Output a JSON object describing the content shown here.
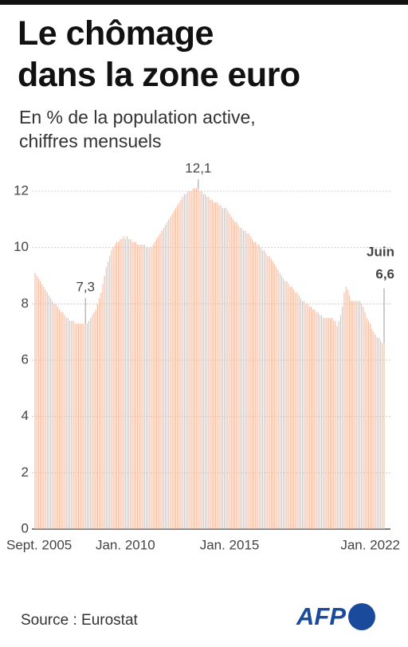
{
  "chart_data": {
    "type": "bar",
    "title": [
      "Le chômage",
      "dans la zone euro"
    ],
    "subtitle": [
      "En % de la population active,",
      "chiffres mensuels"
    ],
    "source": "Source : Eurostat",
    "logo": "AFP",
    "annotation": "Juin",
    "color": "#f5b9a0",
    "grid": true,
    "ylim": [
      0,
      12.3
    ],
    "yticks": [
      0,
      2,
      4,
      6,
      8,
      10,
      12
    ],
    "categories": [
      "Sept. 2005",
      null,
      null,
      null,
      null,
      null,
      null,
      null,
      null,
      null,
      null,
      null,
      null,
      null,
      null,
      null,
      null,
      null,
      null,
      null,
      null,
      null,
      null,
      null,
      null,
      null,
      null,
      null,
      null,
      null,
      null,
      null,
      null,
      null,
      null,
      null,
      null,
      null,
      null,
      null,
      null,
      null,
      null,
      null,
      null,
      null,
      null,
      null,
      null,
      null,
      null,
      null,
      "Jan. 2010",
      null,
      null,
      null,
      null,
      null,
      null,
      null,
      null,
      null,
      null,
      null,
      null,
      null,
      null,
      null,
      null,
      null,
      null,
      null,
      null,
      null,
      null,
      null,
      null,
      null,
      null,
      null,
      null,
      null,
      null,
      null,
      null,
      null,
      null,
      null,
      null,
      null,
      null,
      null,
      null,
      null,
      null,
      null,
      null,
      null,
      null,
      null,
      null,
      null,
      null,
      null,
      null,
      null,
      null,
      null,
      null,
      null,
      null,
      null,
      "Jan. 2015",
      null,
      null,
      null,
      null,
      null,
      null,
      null,
      null,
      null,
      null,
      null,
      null,
      null,
      null,
      null,
      null,
      null,
      null,
      null,
      null,
      null,
      null,
      null,
      null,
      null,
      null,
      null,
      null,
      null,
      null,
      null,
      null,
      null,
      null,
      null,
      null,
      null,
      null,
      null,
      null,
      null,
      null,
      null,
      null,
      null,
      null,
      null,
      null,
      null,
      null,
      null,
      null,
      null,
      null,
      null,
      null,
      null,
      null,
      null,
      null,
      null,
      null,
      null,
      null,
      null,
      null,
      null,
      null,
      null,
      null,
      null,
      null,
      null,
      null,
      null,
      null,
      null,
      null,
      null,
      null,
      null,
      null,
      null,
      "Jan. 2022",
      null,
      null,
      null,
      null,
      null
    ],
    "values": [
      9.1,
      9.0,
      8.9,
      8.8,
      8.7,
      8.6,
      8.5,
      8.4,
      8.3,
      8.2,
      8.1,
      8.0,
      8.0,
      7.9,
      7.8,
      7.7,
      7.7,
      7.6,
      7.5,
      7.5,
      7.4,
      7.4,
      7.4,
      7.3,
      7.3,
      7.3,
      7.3,
      7.3,
      7.3,
      7.3,
      7.3,
      7.4,
      7.5,
      7.6,
      7.7,
      7.8,
      8.0,
      8.2,
      8.4,
      8.7,
      9.0,
      9.3,
      9.5,
      9.7,
      9.9,
      10.0,
      10.1,
      10.2,
      10.2,
      10.3,
      10.3,
      10.4,
      10.3,
      10.4,
      10.3,
      10.3,
      10.2,
      10.2,
      10.2,
      10.1,
      10.1,
      10.1,
      10.1,
      10.1,
      10.0,
      10.0,
      10.0,
      10.0,
      10.1,
      10.2,
      10.3,
      10.4,
      10.5,
      10.6,
      10.7,
      10.8,
      10.9,
      11.0,
      11.1,
      11.2,
      11.3,
      11.4,
      11.5,
      11.6,
      11.7,
      11.8,
      11.9,
      11.9,
      12.0,
      12.0,
      12.0,
      12.1,
      12.1,
      12.1,
      12.1,
      12.0,
      12.0,
      11.9,
      11.9,
      11.8,
      11.8,
      11.7,
      11.7,
      11.6,
      11.6,
      11.6,
      11.5,
      11.5,
      11.4,
      11.4,
      11.4,
      11.3,
      11.2,
      11.1,
      11.0,
      10.9,
      10.9,
      10.8,
      10.7,
      10.7,
      10.6,
      10.6,
      10.5,
      10.5,
      10.4,
      10.3,
      10.2,
      10.2,
      10.1,
      10.1,
      10.0,
      9.9,
      9.9,
      9.8,
      9.7,
      9.7,
      9.6,
      9.5,
      9.4,
      9.3,
      9.2,
      9.1,
      9.0,
      8.9,
      8.8,
      8.8,
      8.7,
      8.6,
      8.6,
      8.5,
      8.4,
      8.4,
      8.3,
      8.2,
      8.1,
      8.1,
      8.0,
      8.0,
      7.9,
      7.9,
      7.8,
      7.8,
      7.7,
      7.7,
      7.6,
      7.6,
      7.5,
      7.5,
      7.5,
      7.5,
      7.5,
      7.5,
      7.4,
      7.4,
      7.2,
      7.4,
      7.6,
      7.9,
      8.4,
      8.6,
      8.5,
      8.3,
      8.1,
      8.1,
      8.1,
      8.1,
      8.1,
      8.1,
      8.0,
      7.9,
      7.7,
      7.5,
      7.4,
      7.3,
      7.1,
      7.0,
      6.9,
      6.8,
      6.8,
      6.7,
      6.6,
      6.6
    ],
    "value_labels": [
      null,
      null,
      null,
      null,
      null,
      null,
      null,
      null,
      null,
      null,
      null,
      null,
      null,
      null,
      null,
      null,
      null,
      null,
      null,
      null,
      null,
      null,
      null,
      null,
      null,
      null,
      null,
      null,
      null,
      "7,3",
      null,
      null,
      null,
      null,
      null,
      null,
      null,
      null,
      null,
      null,
      null,
      null,
      null,
      null,
      null,
      null,
      null,
      null,
      null,
      null,
      null,
      null,
      null,
      null,
      null,
      null,
      null,
      null,
      null,
      null,
      null,
      null,
      null,
      null,
      null,
      null,
      null,
      null,
      null,
      null,
      null,
      null,
      null,
      null,
      null,
      null,
      null,
      null,
      null,
      null,
      null,
      null,
      null,
      null,
      null,
      null,
      null,
      null,
      null,
      null,
      null,
      null,
      null,
      null,
      "12,1",
      null,
      null,
      null,
      null,
      null,
      null,
      null,
      null,
      null,
      null,
      null,
      null,
      null,
      null,
      null,
      null,
      null,
      null,
      null,
      null,
      null,
      null,
      null,
      null,
      null,
      null,
      null,
      null,
      null,
      null,
      null,
      null,
      null,
      null,
      null,
      null,
      null,
      null,
      null,
      null,
      null,
      null,
      null,
      null,
      null,
      null,
      null,
      null,
      null,
      null,
      null,
      null,
      null,
      null,
      null,
      null,
      null,
      null,
      null,
      null,
      null,
      null,
      null,
      null,
      null,
      null,
      null,
      null,
      null,
      null,
      null,
      null,
      null,
      null,
      null,
      null,
      null,
      null,
      null,
      null,
      null,
      null,
      null,
      null,
      null,
      null,
      null,
      null,
      null,
      null,
      null,
      null,
      null,
      null,
      null,
      null,
      null,
      null,
      null,
      null,
      null,
      null,
      null,
      null,
      null,
      null,
      "6,6"
    ]
  }
}
